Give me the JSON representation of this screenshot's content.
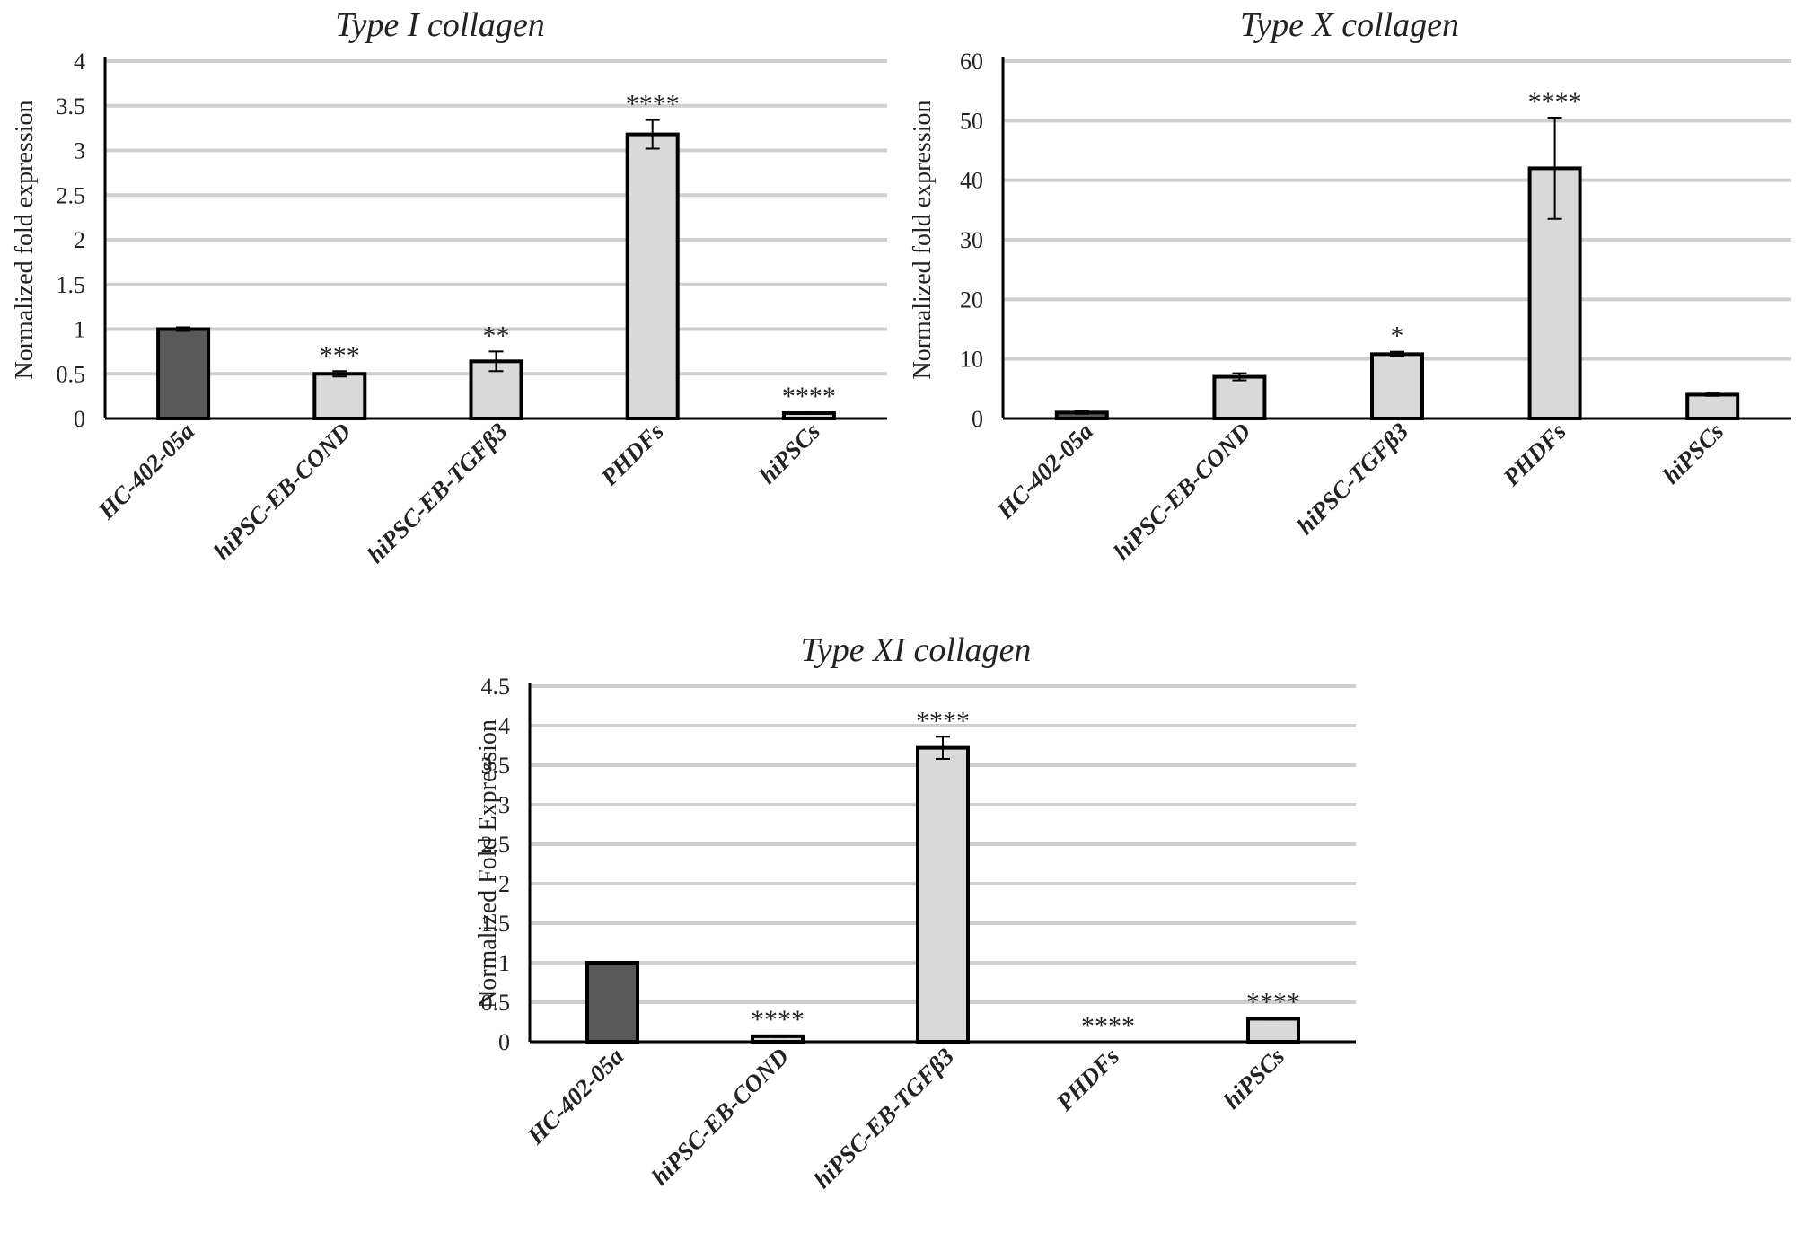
{
  "chart_data": [
    {
      "id": "col1",
      "type": "bar",
      "title": "Type I collagen",
      "ylabel": "Normalized fold expression",
      "xlabel": "",
      "ylim": [
        0,
        4
      ],
      "yticks": [
        0,
        0.5,
        1,
        1.5,
        2,
        2.5,
        3,
        3.5,
        4
      ],
      "ytick_labels": [
        "0",
        "0.5",
        "1",
        "1.5",
        "2",
        "2.5",
        "3",
        "3.5",
        "4"
      ],
      "grid": true,
      "categories": [
        "HC-402-05a",
        "hiPSC-EB-COND",
        "hiPSC-EB-TGFβ3",
        "PHDFs",
        "hiPSCs"
      ],
      "values": [
        1.0,
        0.5,
        0.64,
        3.18,
        0.06
      ],
      "errors": [
        0.02,
        0.03,
        0.11,
        0.16,
        0.01
      ],
      "significance": [
        "",
        "***",
        "**",
        "****",
        "****"
      ],
      "colors": [
        "#595959",
        "#d9d9d9",
        "#d9d9d9",
        "#d9d9d9",
        "#d9d9d9"
      ]
    },
    {
      "id": "col10",
      "type": "bar",
      "title": "Type X collagen",
      "ylabel": "Normalized fold expression",
      "xlabel": "",
      "ylim": [
        0,
        60
      ],
      "yticks": [
        0,
        10,
        20,
        30,
        40,
        50,
        60
      ],
      "ytick_labels": [
        "0",
        "10",
        "20",
        "30",
        "40",
        "50",
        "60"
      ],
      "grid": true,
      "categories": [
        "HC-402-05a",
        "hiPSC-EB-COND",
        "hiPSC-TGFβ3",
        "PHDFs",
        "hiPSCs"
      ],
      "values": [
        1.0,
        7.0,
        10.8,
        42.0,
        4.0
      ],
      "errors": [
        0.2,
        0.6,
        0.4,
        8.5,
        0.2
      ],
      "significance": [
        "",
        "",
        "*",
        "****",
        ""
      ],
      "colors": [
        "#595959",
        "#d9d9d9",
        "#d9d9d9",
        "#d9d9d9",
        "#d9d9d9"
      ]
    },
    {
      "id": "col11",
      "type": "bar",
      "title": "Type XI collagen",
      "ylabel": "Normalized Fold Expression",
      "xlabel": "",
      "ylim": [
        0,
        4.5
      ],
      "yticks": [
        0,
        0.5,
        1,
        1.5,
        2,
        2.5,
        3,
        3.5,
        4,
        4.5
      ],
      "ytick_labels": [
        "0",
        "0.5",
        "1",
        "1.5",
        "2",
        "2.5",
        "3",
        "3.5",
        "4",
        "4.5"
      ],
      "grid": true,
      "categories": [
        "HC-402-05a",
        "hiPSC-EB-COND",
        "hiPSC-EB-TGFβ3",
        "PHDFs",
        "hiPSCs"
      ],
      "values": [
        1.0,
        0.07,
        3.72,
        0.0,
        0.29
      ],
      "errors": [
        0.01,
        0.01,
        0.14,
        0.0,
        0.01
      ],
      "significance": [
        "",
        "****",
        "****",
        "****",
        "****"
      ],
      "colors": [
        "#595959",
        "#d9d9d9",
        "#d9d9d9",
        "#d9d9d9",
        "#d9d9d9"
      ]
    }
  ]
}
